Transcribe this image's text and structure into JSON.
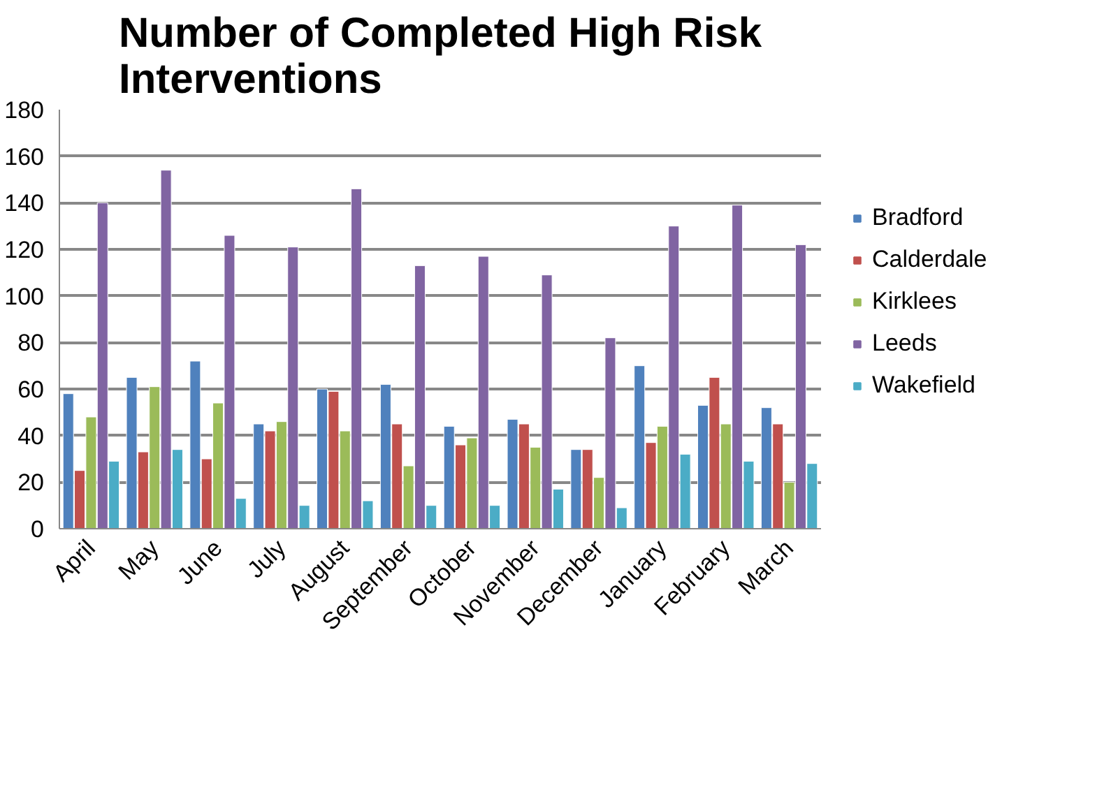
{
  "chart_data": {
    "type": "bar",
    "title": "Number of Completed High Risk Interventions",
    "categories": [
      "April",
      "May",
      "June",
      "July",
      "August",
      "September",
      "October",
      "November",
      "December",
      "January",
      "February",
      "March"
    ],
    "series": [
      {
        "name": "Bradford",
        "color": "#4f81bd",
        "values": [
          58,
          65,
          72,
          45,
          60,
          62,
          44,
          47,
          34,
          70,
          53,
          52
        ]
      },
      {
        "name": "Calderdale",
        "color": "#c0504d",
        "values": [
          25,
          33,
          30,
          42,
          59,
          45,
          36,
          45,
          34,
          37,
          65,
          45
        ]
      },
      {
        "name": "Kirklees",
        "color": "#9bbb59",
        "values": [
          48,
          61,
          54,
          46,
          42,
          27,
          39,
          35,
          22,
          44,
          45,
          20
        ]
      },
      {
        "name": "Leeds",
        "color": "#8064a2",
        "values": [
          140,
          154,
          126,
          121,
          146,
          113,
          117,
          109,
          82,
          130,
          139,
          122
        ]
      },
      {
        "name": "Wakefield",
        "color": "#4bacc6",
        "values": [
          29,
          34,
          13,
          10,
          12,
          10,
          10,
          17,
          9,
          32,
          29,
          28
        ]
      }
    ],
    "ylim": [
      0,
      180
    ],
    "yticks": [
      0,
      20,
      40,
      60,
      80,
      100,
      120,
      140,
      160,
      180
    ],
    "grid": "y",
    "legend": "right"
  }
}
